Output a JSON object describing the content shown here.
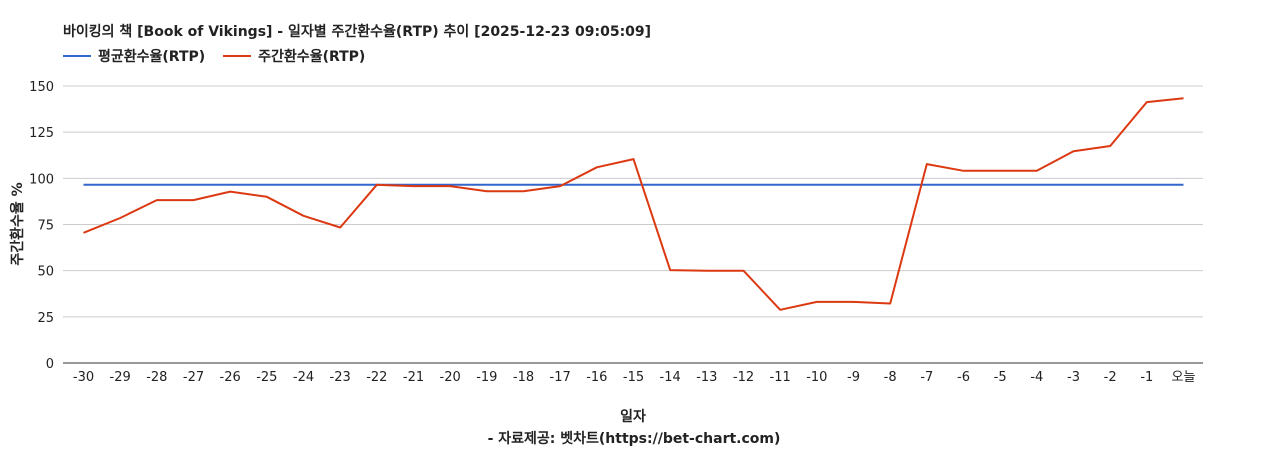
{
  "title": "바이킹의 책 [Book of Vikings] - 일자별 주간환수율(RTP) 추이 [2025-12-23 09:05:09]",
  "footer": "- 자료제공: 벳차트(https://bet-chart.com)",
  "chart_data": {
    "type": "line",
    "title": "바이킹의 책 [Book of Vikings] - 일자별 주간환수율(RTP) 추이 [2025-12-23 09:05:09]",
    "xlabel": "일자",
    "ylabel": "주간환수율 %",
    "ylim": [
      0,
      150
    ],
    "yticks": [
      0,
      25,
      50,
      75,
      100,
      125,
      150
    ],
    "grid": true,
    "legend_position": "top-left",
    "categories": [
      "-30",
      "-29",
      "-28",
      "-27",
      "-26",
      "-25",
      "-24",
      "-23",
      "-22",
      "-21",
      "-20",
      "-19",
      "-18",
      "-17",
      "-16",
      "-15",
      "-14",
      "-13",
      "-12",
      "-11",
      "-10",
      "-9",
      "-8",
      "-7",
      "-6",
      "-5",
      "-4",
      "-3",
      "-2",
      "-1",
      "오늘"
    ],
    "series": [
      {
        "name": "평균환수율(RTP)",
        "color": "#3366cc",
        "values": [
          96.5,
          96.5,
          96.5,
          96.5,
          96.5,
          96.5,
          96.5,
          96.5,
          96.5,
          96.5,
          96.5,
          96.5,
          96.5,
          96.5,
          96.5,
          96.5,
          96.5,
          96.5,
          96.5,
          96.5,
          96.5,
          96.5,
          96.5,
          96.5,
          96.5,
          96.5,
          96.5,
          96.5,
          96.5,
          96.5,
          96.5
        ]
      },
      {
        "name": "주간환수율(RTP)",
        "color": "#dc3912",
        "values": [
          70.5,
          78.5,
          88.2,
          88.2,
          92.8,
          90.0,
          79.7,
          73.4,
          96.5,
          95.8,
          95.8,
          93.0,
          93.0,
          95.8,
          106.0,
          110.4,
          50.3,
          50.0,
          50.0,
          28.8,
          33.1,
          33.1,
          32.2,
          107.7,
          104.1,
          104.1,
          104.1,
          114.7,
          117.5,
          141.3,
          143.4
        ]
      }
    ]
  }
}
